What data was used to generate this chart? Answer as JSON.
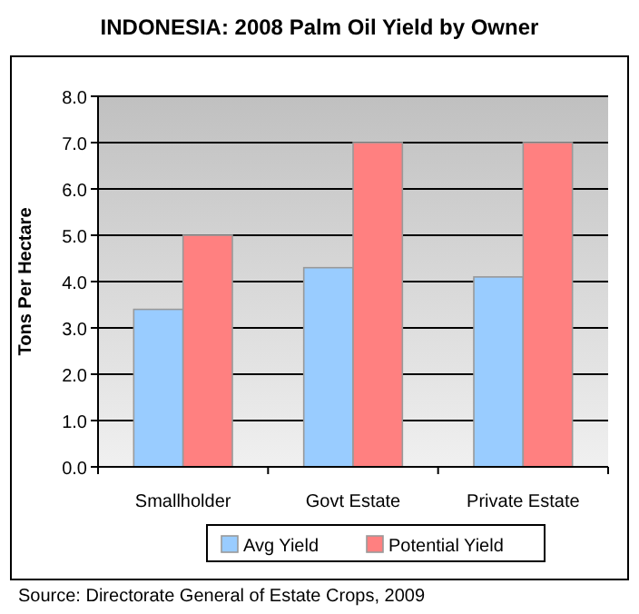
{
  "chart_data": {
    "type": "bar",
    "title": "INDONESIA: 2008 Palm Oil Yield by Owner",
    "ylabel": "Tons Per Hectare",
    "categories": [
      "Smallholder",
      "Govt Estate",
      "Private Estate"
    ],
    "series": [
      {
        "name": "Avg Yield",
        "color": "#99ccff",
        "values": [
          3.4,
          4.3,
          4.1
        ]
      },
      {
        "name": "Potential Yield",
        "color": "#ff8080",
        "values": [
          5.0,
          7.0,
          7.0
        ]
      }
    ],
    "ylim": [
      0,
      8
    ],
    "yticks": [
      {
        "value": 0,
        "label": "0.0"
      },
      {
        "value": 1,
        "label": "1.0"
      },
      {
        "value": 2,
        "label": "2.0"
      },
      {
        "value": 3,
        "label": "3.0"
      },
      {
        "value": 4,
        "label": "4.0"
      },
      {
        "value": 5,
        "label": "5.0"
      },
      {
        "value": 6,
        "label": "6.0"
      },
      {
        "value": 7,
        "label": "7.0"
      },
      {
        "value": 8,
        "label": "8.0"
      }
    ],
    "grid": "y",
    "legend": "bottom",
    "annotations": [
      "Source: Directorate General of Estate Crops, 2009"
    ]
  }
}
